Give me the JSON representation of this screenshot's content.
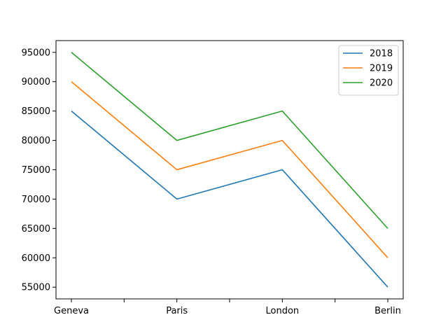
{
  "chart_data": {
    "type": "line",
    "title": "",
    "xlabel": "",
    "ylabel": "",
    "categories": [
      "Geneva",
      "Paris",
      "London",
      "Berlin"
    ],
    "series": [
      {
        "name": "2018",
        "color": "#1f77b4",
        "values": [
          85000,
          70000,
          75000,
          55000
        ]
      },
      {
        "name": "2019",
        "color": "#ff7f0e",
        "values": [
          90000,
          75000,
          80000,
          60000
        ]
      },
      {
        "name": "2020",
        "color": "#2ca02c",
        "values": [
          95000,
          80000,
          85000,
          65000
        ]
      }
    ],
    "ylim": [
      53000,
      97000
    ],
    "yticks": [
      55000,
      60000,
      65000,
      70000,
      75000,
      80000,
      85000,
      90000,
      95000
    ],
    "ytick_labels": [
      "55000",
      "60000",
      "65000",
      "70000",
      "75000",
      "80000",
      "85000",
      "90000",
      "95000"
    ],
    "minor_xticks": [
      0.5,
      1.5,
      2.5
    ],
    "grid": false,
    "legend_position": "upper-right"
  }
}
